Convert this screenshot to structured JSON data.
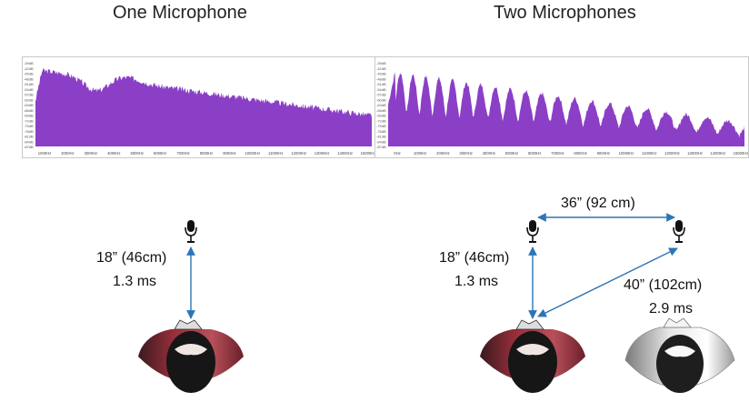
{
  "titles": {
    "left": "One Microphone",
    "right": "Two Microphones"
  },
  "spectrum": {
    "fill_color": "#8B3FC6",
    "y_ticks": [
      "-39dB",
      "-42dB",
      "-45dB",
      "-48dB",
      "-51dB",
      "-54dB",
      "-57dB",
      "-60dB",
      "-63dB",
      "-66dB",
      "-69dB",
      "-72dB",
      "-75dB",
      "-78dB",
      "-81dB",
      "-84dB",
      "-87dB"
    ],
    "x_ticks_left": [
      "1000Hz",
      "2000Hz",
      "3000Hz",
      "4000Hz",
      "5000Hz",
      "6000Hz",
      "7000Hz",
      "8000Hz",
      "9000Hz",
      "10000Hz",
      "11000Hz",
      "12000Hz",
      "13000Hz",
      "14000Hz",
      "15000Hz"
    ],
    "x_ticks_right": [
      "0Hz",
      "1000Hz",
      "2000Hz",
      "3000Hz",
      "4000Hz",
      "5000Hz",
      "6000Hz",
      "7000Hz",
      "8000Hz",
      "9000Hz",
      "10000Hz",
      "11000Hz",
      "12000Hz",
      "13000Hz",
      "14000Hz",
      "15000Hz"
    ]
  },
  "left_diagram": {
    "distance_label": "18” (46cm)",
    "delay_label": "1.3 ms"
  },
  "right_diagram": {
    "distance_label": "18” (46cm)",
    "delay_label": "1.3 ms",
    "mic_spacing_label": "36” (92 cm)",
    "far_distance_label": "40” (102cm)",
    "far_delay_label": "2.9 ms"
  },
  "colors": {
    "arrow": "#2E75B6",
    "person_left": "#9B2F3C",
    "person_shadow": "#2b1e1e",
    "hair": "#1a1a1a",
    "ghost": "#bdbdbd"
  }
}
